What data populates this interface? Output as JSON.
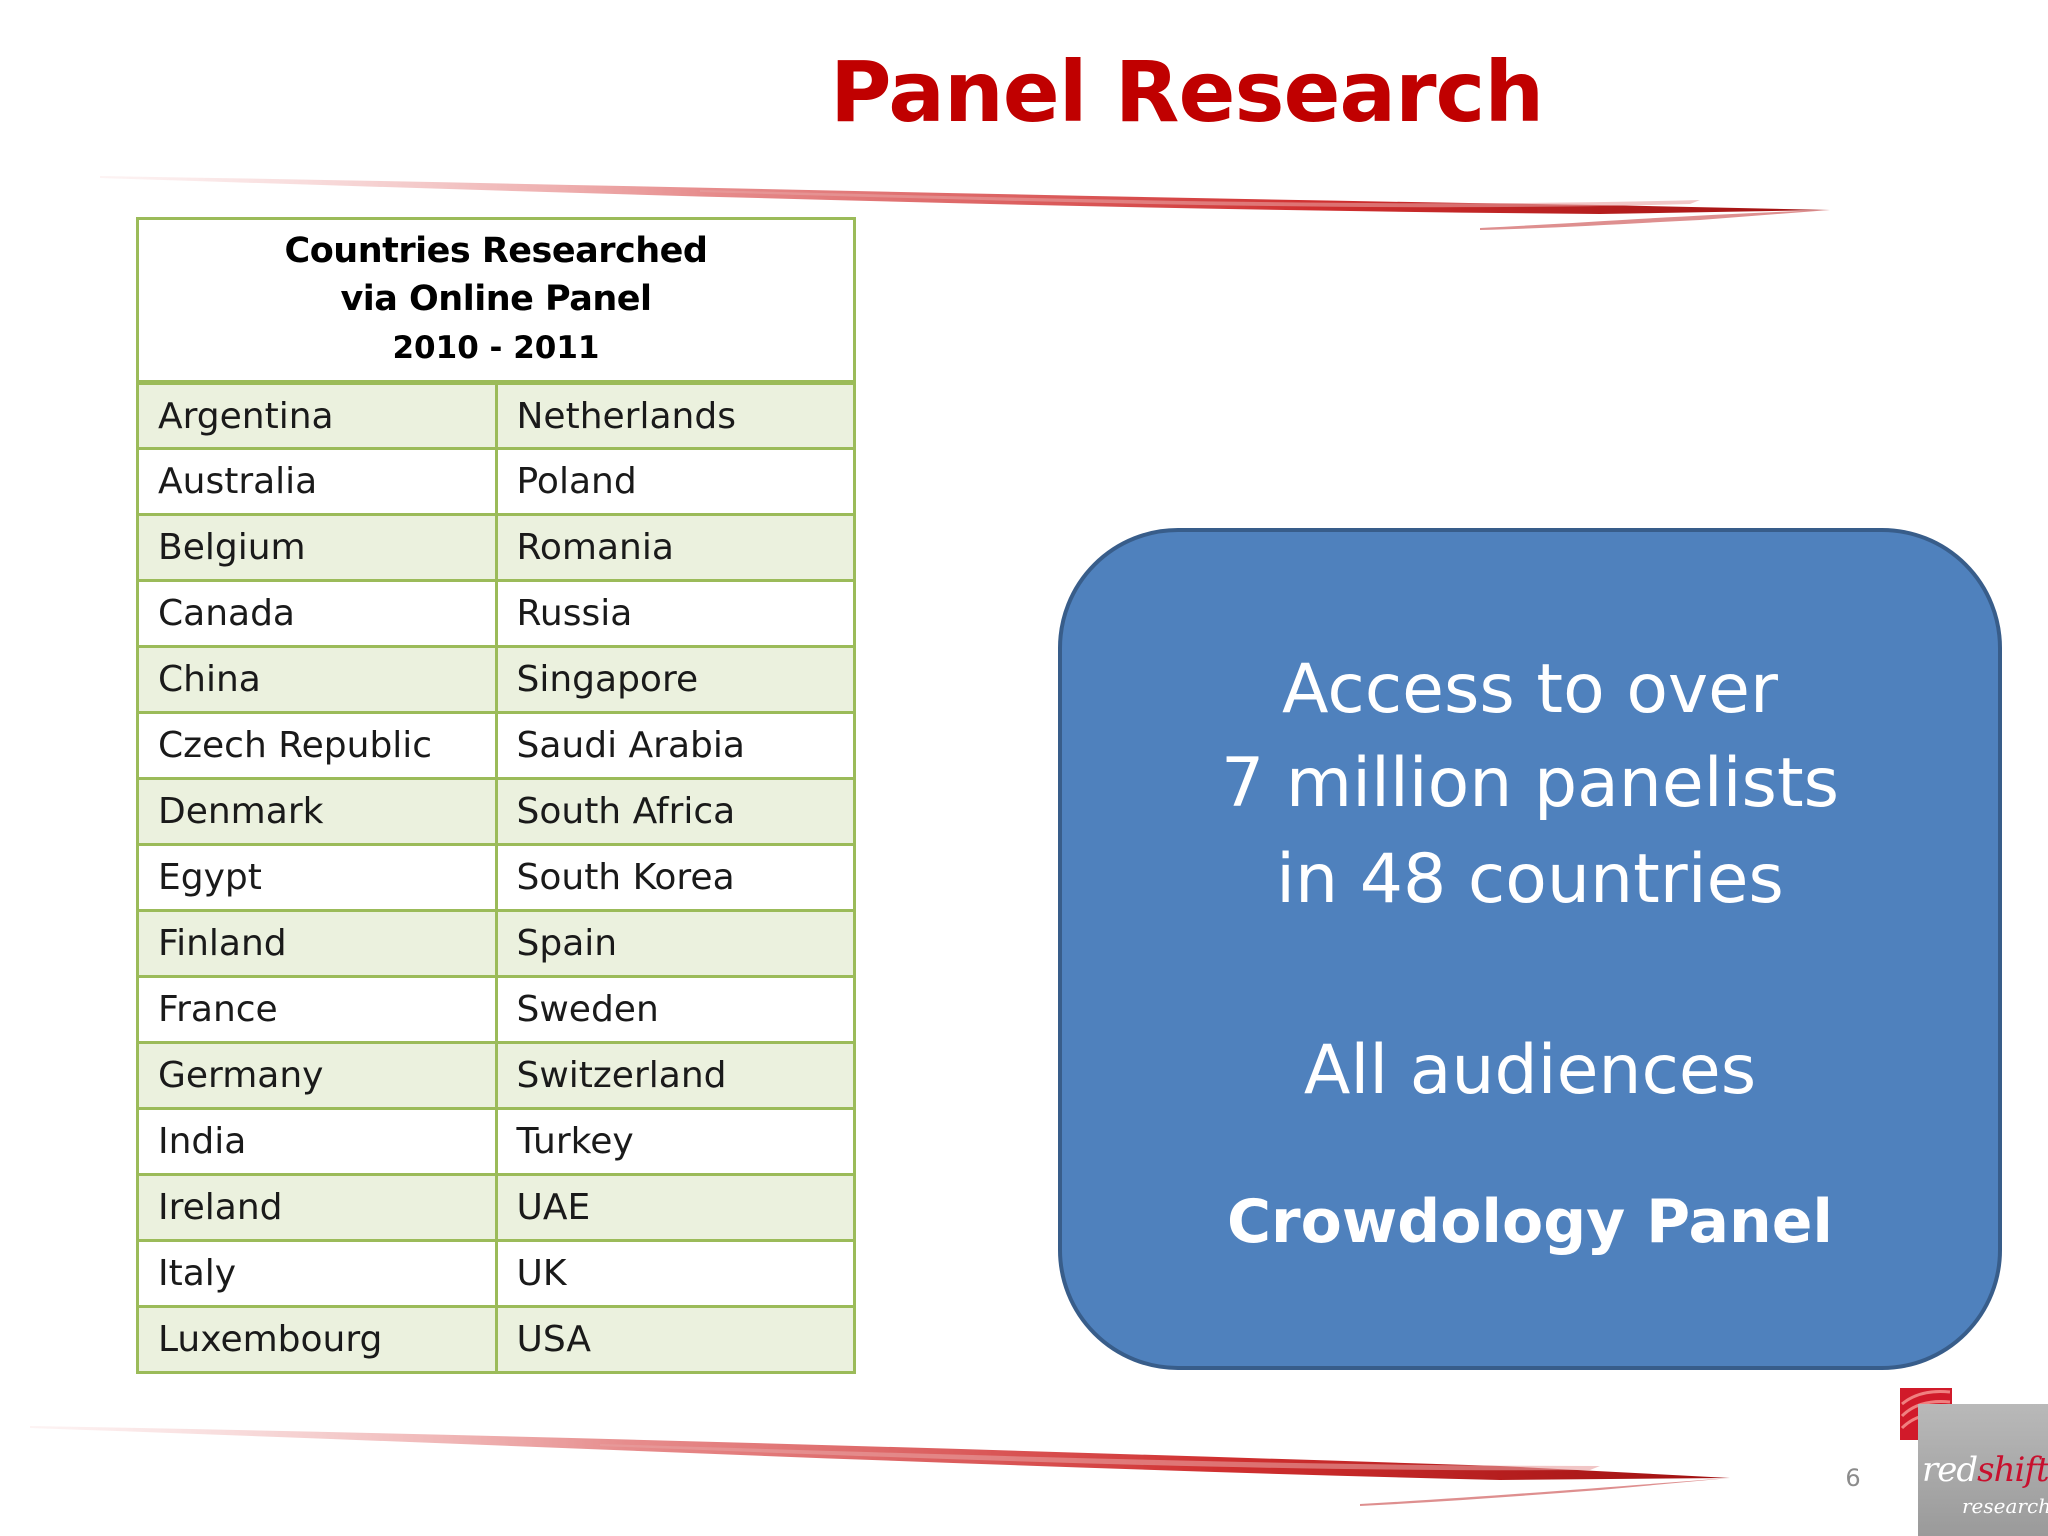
{
  "slide": {
    "title": "Panel Research",
    "page_number": "6"
  },
  "table": {
    "header_line1": "Countries Researched",
    "header_line2": "via Online Panel",
    "header_years": "2010 - 2011",
    "rows": [
      [
        "Argentina",
        "Netherlands"
      ],
      [
        "Australia",
        "Poland"
      ],
      [
        "Belgium",
        "Romania"
      ],
      [
        "Canada",
        "Russia"
      ],
      [
        "China",
        "Singapore"
      ],
      [
        "Czech Republic",
        "Saudi Arabia"
      ],
      [
        "Denmark",
        "South Africa"
      ],
      [
        "Egypt",
        "South Korea"
      ],
      [
        "Finland",
        "Spain"
      ],
      [
        "France",
        "Sweden"
      ],
      [
        "Germany",
        "Switzerland"
      ],
      [
        "India",
        "Turkey"
      ],
      [
        "Ireland",
        "UAE"
      ],
      [
        "Italy",
        "UK"
      ],
      [
        "Luxembourg",
        "USA"
      ]
    ]
  },
  "info_box": {
    "line1": "Access to over",
    "line2": "7 million panelists",
    "line3": "in 48 countries",
    "line4": "All audiences",
    "line5": "Crowdology Panel"
  },
  "logo": {
    "word_red": "red",
    "word_shift": "shift",
    "word_sub": "research"
  },
  "colors": {
    "title": "#c00000",
    "table_border": "#9bbb59",
    "table_band": "#ebf1de",
    "box_fill": "#4f81bd",
    "box_border": "#385d8a"
  }
}
